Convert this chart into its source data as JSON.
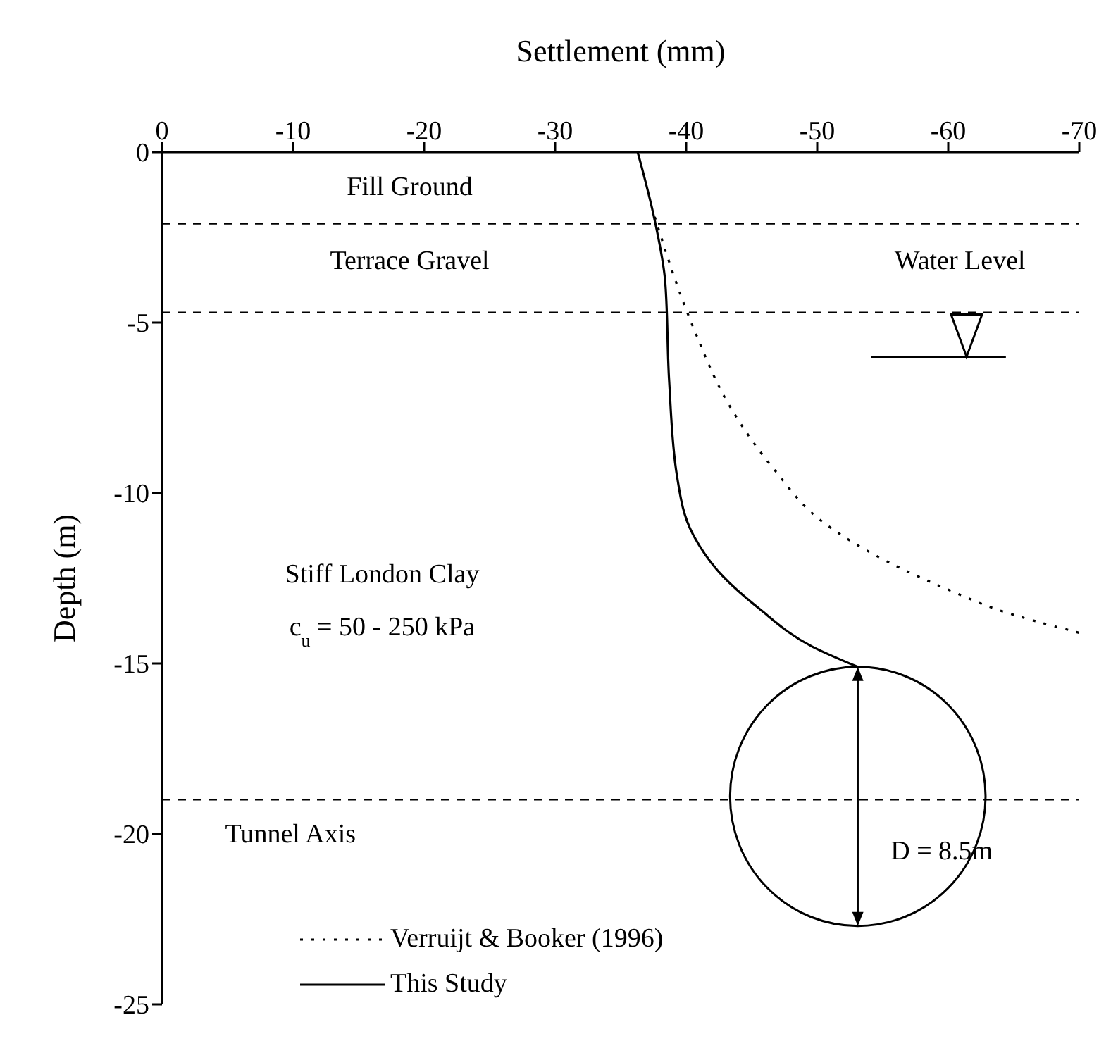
{
  "chart_data": {
    "type": "line",
    "xlabel": "Settlement (mm)",
    "ylabel": "Depth (m)",
    "xlim": [
      0,
      -70
    ],
    "xticks": [
      0,
      -10,
      -20,
      -30,
      -40,
      -50,
      -60,
      -70
    ],
    "ylim": [
      -25,
      0
    ],
    "yticks": [
      0,
      -5,
      -10,
      -15,
      -20,
      -25
    ],
    "legend": "bottom left",
    "marker": "none",
    "series": [
      {
        "name": "Verruijt & Booker (1996)",
        "color": "#000000",
        "line_style": "dotted",
        "x": [
          -37.6,
          -40.5,
          -43.4,
          -46.7,
          -50.6,
          -55.3,
          -60.4,
          -63.6,
          -70
        ],
        "values": [
          -1.9,
          -5.1,
          -7.5,
          -9.3,
          -10.9,
          -12.0,
          -12.9,
          -13.4,
          -14.1
        ]
      },
      {
        "name": "This Study",
        "color": "#000000",
        "line_style": "solid",
        "x": [
          -36.3,
          -37.6,
          -38.4,
          -38.7,
          -39.3,
          -40.5,
          -42.7,
          -45.6,
          -49.6,
          -53.1
        ],
        "values": [
          0,
          -2.0,
          -3.8,
          -6.7,
          -9.5,
          -11.2,
          -12.4,
          -13.4,
          -14.5,
          -15.1
        ]
      }
    ],
    "ref_lines": [
      {
        "axis": "y",
        "value": -2.1,
        "line_style": "dashed",
        "color": "#000000"
      },
      {
        "axis": "y",
        "value": -4.7,
        "line_style": "dashed",
        "color": "#000000"
      },
      {
        "axis": "y",
        "value": -19.0,
        "line_style": "dashed",
        "color": "#000000"
      }
    ],
    "annotations": [
      "Fill Ground",
      "Terrace Gravel",
      "Water Level",
      "Stiff London Clay",
      "c$_{u}$ = 50 - 250 kPa",
      "Tunnel Axis",
      "D = 8.5m"
    ]
  }
}
